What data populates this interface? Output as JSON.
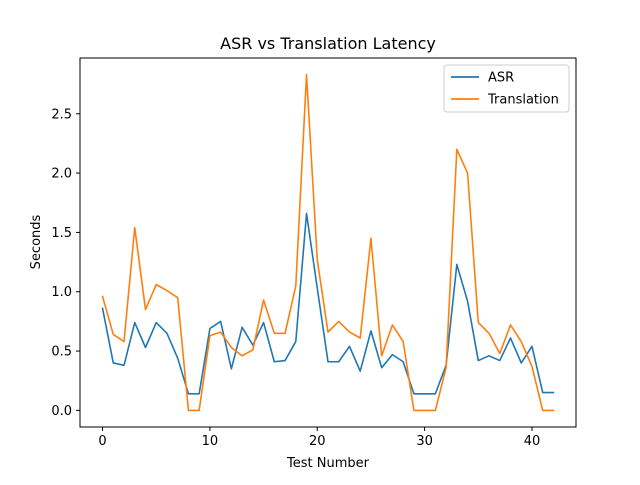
{
  "chart_data": {
    "type": "line",
    "title": "ASR vs Translation Latency",
    "xlabel": "Test Number",
    "ylabel": "Seconds",
    "xlim": [
      -2.1,
      44.1
    ],
    "ylim": [
      -0.14,
      2.97
    ],
    "xticks": [
      0,
      10,
      20,
      30,
      40
    ],
    "yticks": [
      0.0,
      0.5,
      1.0,
      1.5,
      2.0,
      2.5
    ],
    "ytick_labels": [
      "0.0",
      "0.5",
      "1.0",
      "1.5",
      "2.0",
      "2.5"
    ],
    "legend_position": "top-right",
    "grid": false,
    "x": [
      0,
      1,
      2,
      3,
      4,
      5,
      6,
      7,
      8,
      9,
      10,
      11,
      12,
      13,
      14,
      15,
      16,
      17,
      18,
      19,
      20,
      21,
      22,
      23,
      24,
      25,
      26,
      27,
      28,
      29,
      30,
      31,
      32,
      33,
      34,
      35,
      36,
      37,
      38,
      39,
      40,
      41,
      42
    ],
    "series": [
      {
        "name": "ASR",
        "color": "#1f77b4",
        "values": [
          0.86,
          0.4,
          0.38,
          0.74,
          0.53,
          0.74,
          0.65,
          0.44,
          0.14,
          0.14,
          0.69,
          0.75,
          0.35,
          0.7,
          0.55,
          0.74,
          0.41,
          0.42,
          0.58,
          1.66,
          1.03,
          0.41,
          0.41,
          0.54,
          0.33,
          0.67,
          0.36,
          0.47,
          0.41,
          0.14,
          0.14,
          0.14,
          0.38,
          1.23,
          0.92,
          0.42,
          0.46,
          0.42,
          0.61,
          0.4,
          0.54,
          0.15,
          0.15
        ]
      },
      {
        "name": "Translation",
        "color": "#ff7f0e",
        "values": [
          0.96,
          0.64,
          0.58,
          1.54,
          0.85,
          1.06,
          1.01,
          0.95,
          0.0,
          0.0,
          0.63,
          0.66,
          0.53,
          0.46,
          0.51,
          0.93,
          0.65,
          0.65,
          1.05,
          2.83,
          1.27,
          0.66,
          0.75,
          0.66,
          0.61,
          1.45,
          0.46,
          0.72,
          0.58,
          0.0,
          0.0,
          0.0,
          0.36,
          2.2,
          2.0,
          0.74,
          0.65,
          0.48,
          0.72,
          0.58,
          0.37,
          0.0,
          0.0
        ]
      }
    ]
  }
}
